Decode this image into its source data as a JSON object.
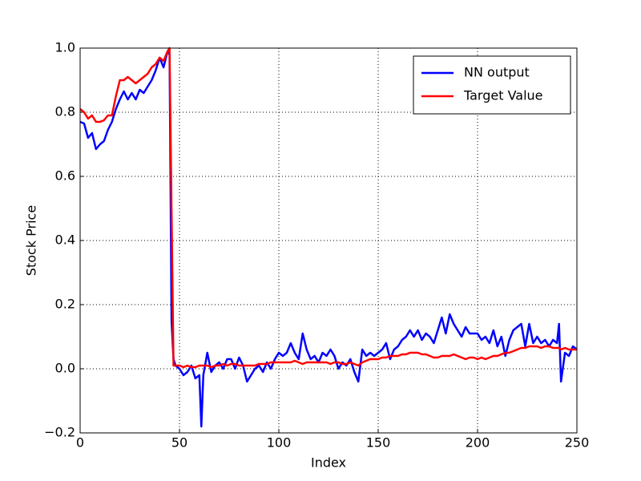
{
  "chart_data": {
    "type": "line",
    "xlabel": "Index",
    "ylabel": "Stock Price",
    "x": [
      0,
      2,
      4,
      6,
      8,
      10,
      12,
      14,
      16,
      18,
      20,
      22,
      24,
      26,
      28,
      30,
      32,
      34,
      36,
      38,
      40,
      42,
      44,
      45,
      46,
      47,
      48,
      50,
      52,
      54,
      56,
      58,
      60,
      61,
      62,
      64,
      66,
      68,
      70,
      72,
      74,
      76,
      78,
      80,
      82,
      84,
      86,
      88,
      90,
      92,
      94,
      96,
      98,
      100,
      102,
      104,
      106,
      108,
      110,
      112,
      114,
      116,
      118,
      120,
      122,
      124,
      126,
      128,
      130,
      132,
      134,
      136,
      138,
      140,
      142,
      144,
      146,
      148,
      150,
      152,
      154,
      156,
      158,
      160,
      162,
      164,
      166,
      168,
      170,
      172,
      174,
      176,
      178,
      180,
      182,
      184,
      186,
      188,
      190,
      192,
      194,
      196,
      198,
      200,
      202,
      204,
      206,
      208,
      210,
      212,
      214,
      216,
      218,
      220,
      222,
      224,
      226,
      228,
      230,
      232,
      234,
      236,
      238,
      240,
      241,
      242,
      244,
      246,
      248,
      250
    ],
    "series": [
      {
        "name": "NN output",
        "color": "#0000ff",
        "values": [
          0.77,
          0.765,
          0.72,
          0.735,
          0.685,
          0.7,
          0.71,
          0.745,
          0.77,
          0.81,
          0.84,
          0.865,
          0.84,
          0.86,
          0.84,
          0.87,
          0.86,
          0.88,
          0.9,
          0.93,
          0.97,
          0.94,
          0.99,
          0.98,
          0.15,
          0.03,
          0.01,
          0.0,
          -0.02,
          -0.01,
          0.01,
          -0.03,
          -0.02,
          -0.18,
          -0.02,
          0.05,
          -0.01,
          0.01,
          0.02,
          0.0,
          0.03,
          0.03,
          0.0,
          0.035,
          0.01,
          -0.04,
          -0.02,
          0.0,
          0.01,
          -0.01,
          0.02,
          0.0,
          0.03,
          0.05,
          0.04,
          0.05,
          0.08,
          0.05,
          0.03,
          0.11,
          0.06,
          0.03,
          0.04,
          0.02,
          0.05,
          0.04,
          0.06,
          0.04,
          0.0,
          0.02,
          0.01,
          0.03,
          -0.01,
          -0.04,
          0.06,
          0.04,
          0.05,
          0.04,
          0.05,
          0.06,
          0.08,
          0.03,
          0.06,
          0.07,
          0.09,
          0.1,
          0.12,
          0.1,
          0.12,
          0.09,
          0.11,
          0.1,
          0.08,
          0.12,
          0.16,
          0.11,
          0.17,
          0.14,
          0.12,
          0.1,
          0.13,
          0.11,
          0.11,
          0.11,
          0.09,
          0.1,
          0.08,
          0.12,
          0.07,
          0.1,
          0.04,
          0.09,
          0.12,
          0.13,
          0.14,
          0.07,
          0.14,
          0.08,
          0.1,
          0.08,
          0.09,
          0.07,
          0.09,
          0.08,
          0.14,
          -0.04,
          0.05,
          0.04,
          0.07,
          0.06
        ]
      },
      {
        "name": "Target Value",
        "color": "#ff0000",
        "values": [
          0.81,
          0.8,
          0.78,
          0.79,
          0.77,
          0.77,
          0.775,
          0.79,
          0.79,
          0.85,
          0.9,
          0.9,
          0.91,
          0.9,
          0.89,
          0.9,
          0.91,
          0.92,
          0.94,
          0.95,
          0.97,
          0.96,
          0.99,
          1.0,
          0.5,
          0.01,
          0.01,
          0.01,
          0.005,
          0.01,
          0.005,
          0.005,
          0.01,
          0.01,
          0.01,
          0.01,
          0.005,
          0.01,
          0.01,
          0.015,
          0.01,
          0.015,
          0.015,
          0.01,
          0.01,
          0.01,
          0.01,
          0.01,
          0.015,
          0.015,
          0.015,
          0.02,
          0.02,
          0.02,
          0.02,
          0.02,
          0.02,
          0.025,
          0.02,
          0.015,
          0.02,
          0.02,
          0.02,
          0.02,
          0.02,
          0.02,
          0.015,
          0.02,
          0.02,
          0.015,
          0.015,
          0.02,
          0.015,
          0.01,
          0.02,
          0.025,
          0.03,
          0.03,
          0.03,
          0.035,
          0.035,
          0.04,
          0.04,
          0.04,
          0.045,
          0.045,
          0.05,
          0.05,
          0.05,
          0.045,
          0.045,
          0.04,
          0.035,
          0.035,
          0.04,
          0.04,
          0.04,
          0.045,
          0.04,
          0.035,
          0.03,
          0.035,
          0.035,
          0.03,
          0.035,
          0.03,
          0.035,
          0.04,
          0.04,
          0.045,
          0.05,
          0.05,
          0.055,
          0.06,
          0.065,
          0.065,
          0.07,
          0.07,
          0.07,
          0.065,
          0.07,
          0.07,
          0.065,
          0.065,
          0.065,
          0.06,
          0.065,
          0.06,
          0.06,
          0.06
        ]
      }
    ],
    "xlim": [
      0,
      250
    ],
    "xticks": [
      0,
      50,
      100,
      150,
      200,
      250
    ],
    "ylim": [
      -0.2,
      1.0
    ],
    "yticks": [
      {
        "value": -0.2,
        "label": "−0.2"
      },
      {
        "value": 0,
        "label": "0.0"
      },
      0.2,
      0.4,
      0.6,
      0.8,
      {
        "value": 1,
        "label": "1.0"
      }
    ],
    "grid": true,
    "legend": "upper right"
  }
}
